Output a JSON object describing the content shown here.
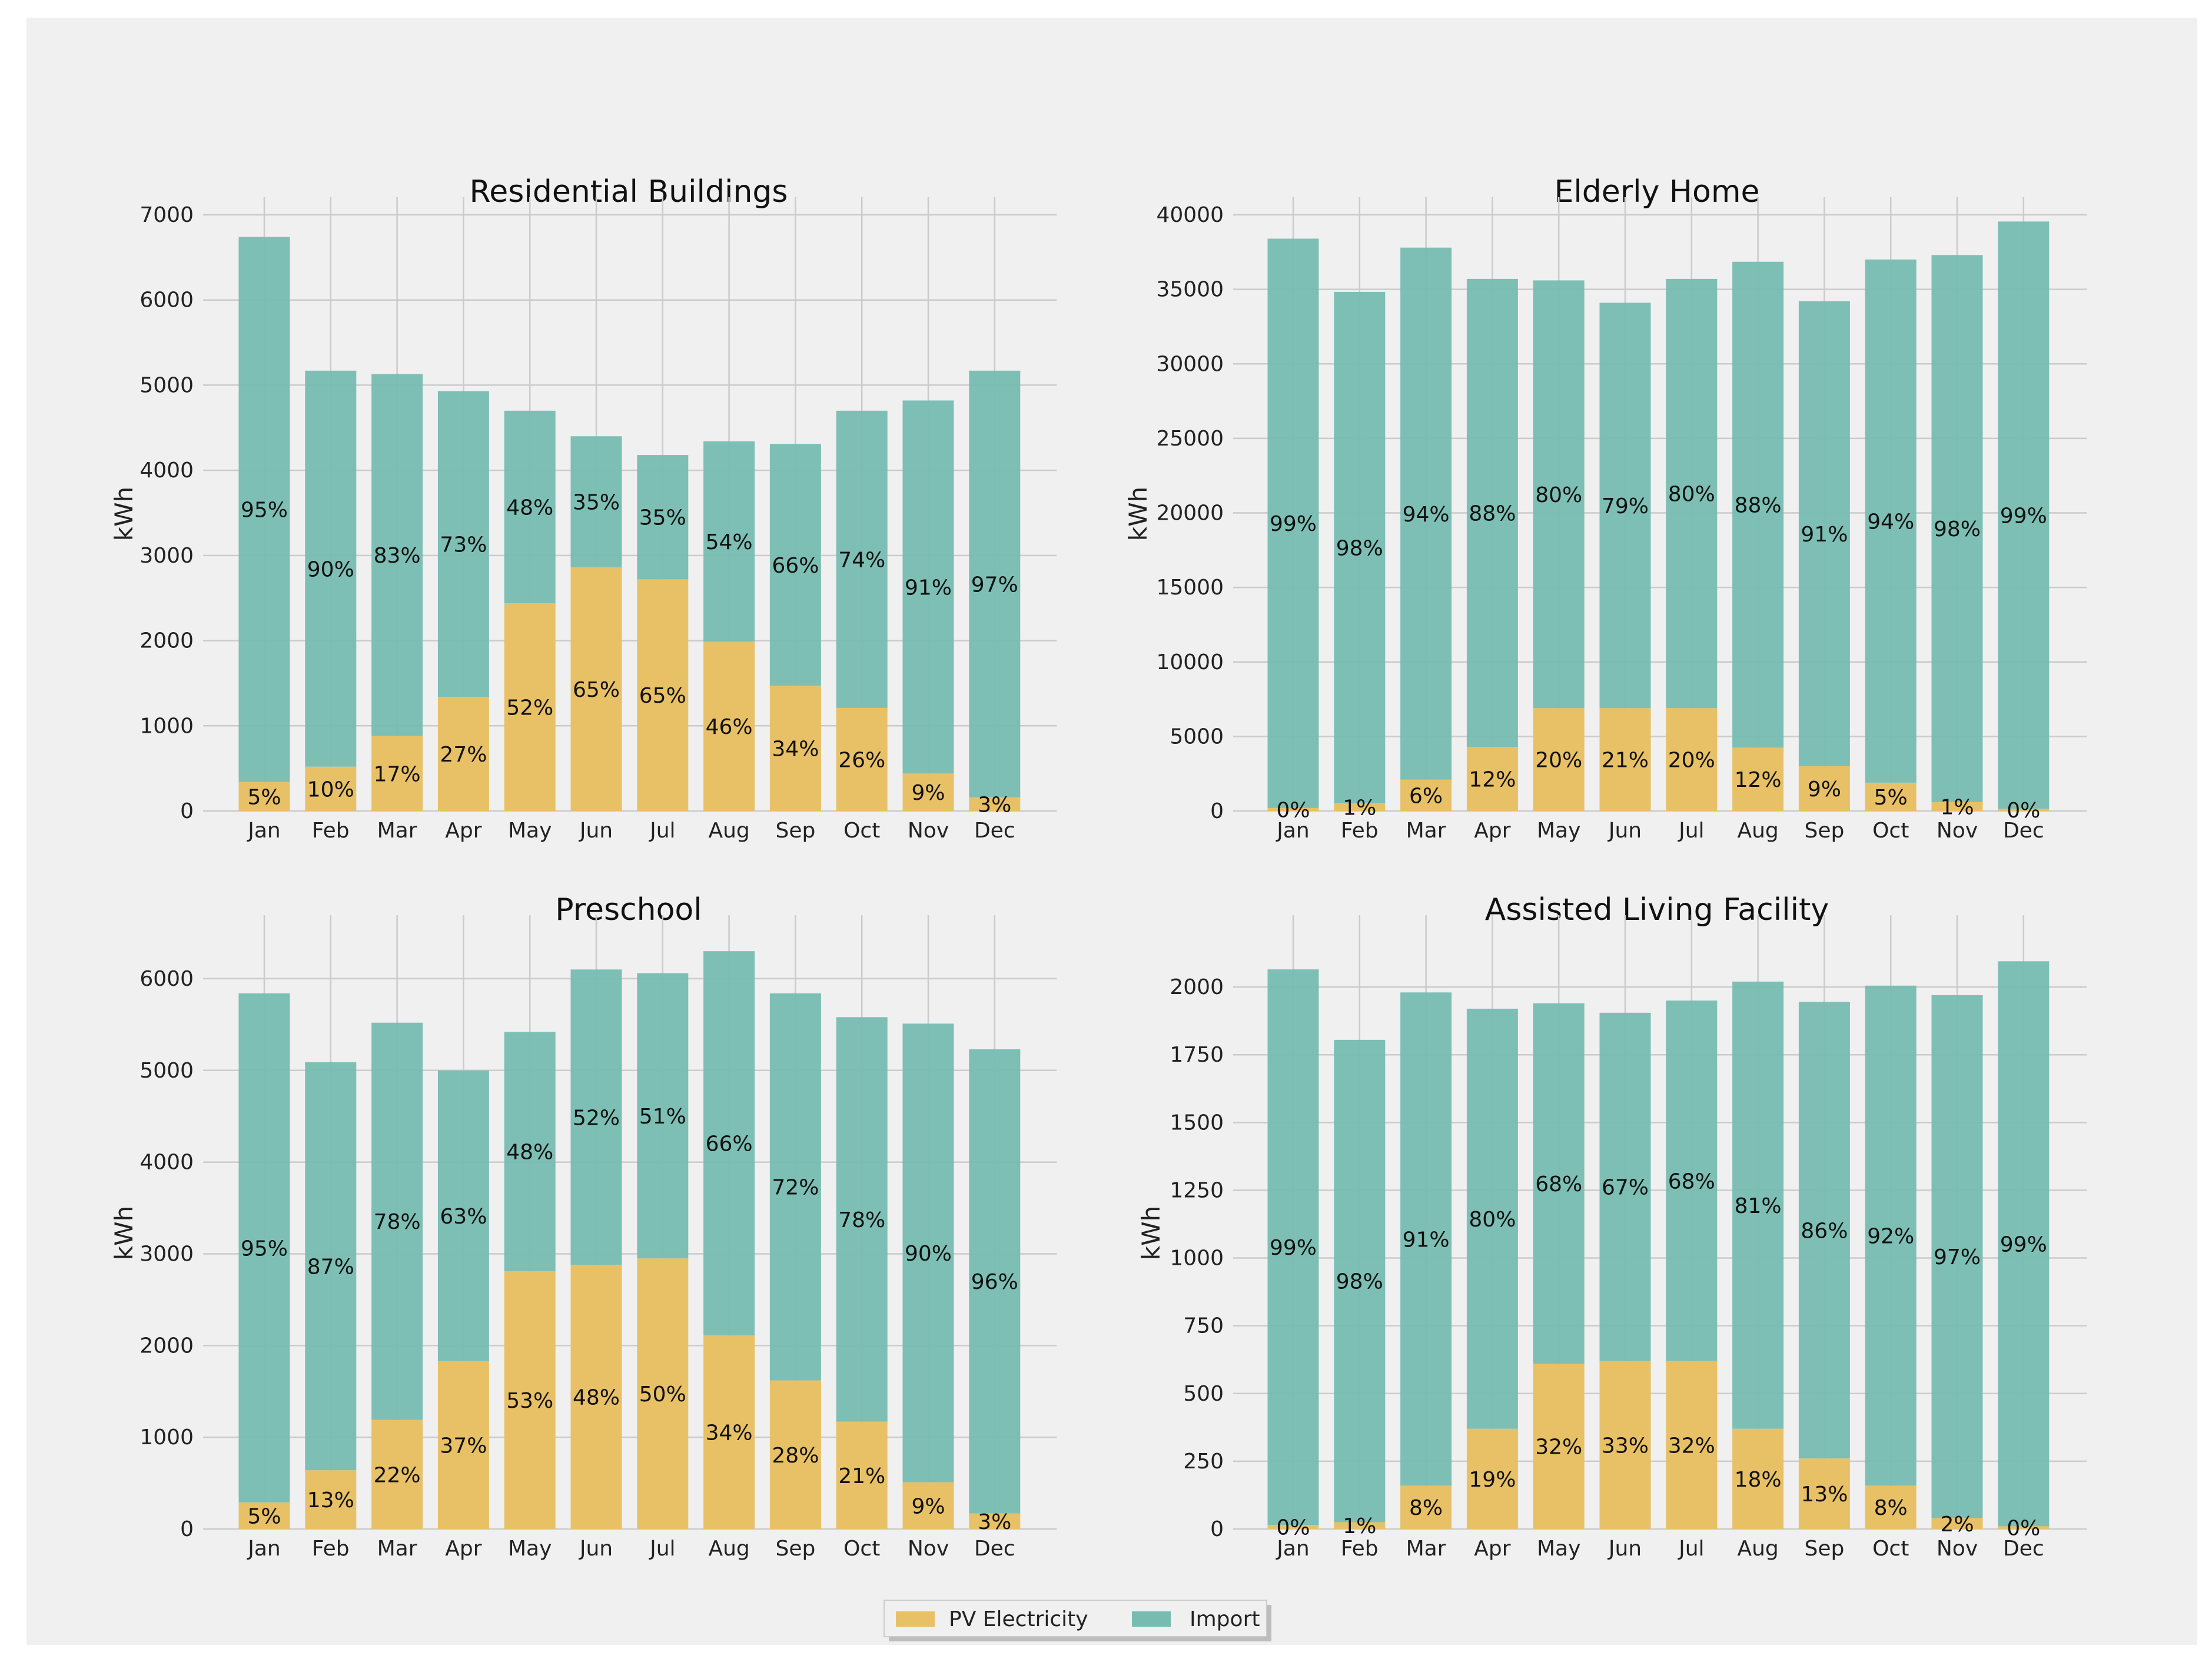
{
  "colors": {
    "figure_background": "#f0f0f0",
    "pv": "#e8c167",
    "import": "#77bcb1",
    "grid": "#cbcbcb",
    "text": "#222222"
  },
  "legend": {
    "items": [
      {
        "label": "PV Electricity",
        "color": "#e8c167"
      },
      {
        "label": "Import",
        "color": "#77bcb1"
      }
    ],
    "placement": "bottom-center"
  },
  "chart_data": [
    {
      "type": "bar",
      "stacked": true,
      "title": "Residential Buildings",
      "ylabel": "kWh",
      "xlabel": "",
      "grid": true,
      "ylim": [
        0,
        7000
      ],
      "yticks": [
        0,
        1000,
        2000,
        3000,
        4000,
        5000,
        6000,
        7000
      ],
      "yticklabels": [
        "0",
        "1000",
        "2000",
        "3000",
        "4000",
        "5000",
        "6000",
        "7000"
      ],
      "categories": [
        "Jan",
        "Feb",
        "Mar",
        "Apr",
        "May",
        "Jun",
        "Jul",
        "Aug",
        "Sep",
        "Oct",
        "Nov",
        "Dec"
      ],
      "series": [
        {
          "name": "PV Electricity",
          "values": [
            340,
            520,
            880,
            1340,
            2440,
            2860,
            2720,
            1990,
            1470,
            1210,
            440,
            160
          ],
          "labels": [
            "5%",
            "10%",
            "17%",
            "27%",
            "52%",
            "65%",
            "65%",
            "46%",
            "34%",
            "26%",
            "9%",
            "3%"
          ]
        },
        {
          "name": "Import",
          "values": [
            6400,
            4650,
            4250,
            3590,
            2260,
            1540,
            1460,
            2350,
            2840,
            3490,
            4380,
            5010
          ],
          "labels": [
            "95%",
            "90%",
            "83%",
            "73%",
            "48%",
            "35%",
            "35%",
            "54%",
            "66%",
            "74%",
            "91%",
            "97%"
          ]
        }
      ]
    },
    {
      "type": "bar",
      "stacked": true,
      "title": "Elderly Home",
      "ylabel": "kWh",
      "xlabel": "",
      "grid": true,
      "ylim": [
        0,
        40000
      ],
      "yticks": [
        0,
        5000,
        10000,
        15000,
        20000,
        25000,
        30000,
        35000,
        40000
      ],
      "yticklabels": [
        "0",
        "5000",
        "10000",
        "15000",
        "20000",
        "25000",
        "30000",
        "35000",
        "40000"
      ],
      "categories": [
        "Jan",
        "Feb",
        "Mar",
        "Apr",
        "May",
        "Jun",
        "Jul",
        "Aug",
        "Sep",
        "Oct",
        "Nov",
        "Dec"
      ],
      "series": [
        {
          "name": "PV Electricity",
          "values": [
            200,
            530,
            2100,
            4300,
            6900,
            6900,
            6900,
            4250,
            3000,
            1900,
            600,
            150
          ],
          "labels": [
            "0%",
            "1%",
            "6%",
            "12%",
            "20%",
            "21%",
            "20%",
            "12%",
            "9%",
            "5%",
            "1%",
            "0%"
          ]
        },
        {
          "name": "Import",
          "values": [
            38200,
            34300,
            35700,
            31400,
            28700,
            27200,
            28800,
            32600,
            31200,
            35100,
            36700,
            39400
          ],
          "labels": [
            "99%",
            "98%",
            "94%",
            "88%",
            "80%",
            "79%",
            "80%",
            "88%",
            "91%",
            "94%",
            "98%",
            "99%"
          ]
        }
      ]
    },
    {
      "type": "bar",
      "stacked": true,
      "title": "Preschool",
      "ylabel": "kWh",
      "xlabel": "",
      "grid": true,
      "ylim": [
        0,
        6500
      ],
      "yticks": [
        0,
        1000,
        2000,
        3000,
        4000,
        5000,
        6000
      ],
      "yticklabels": [
        "0",
        "1000",
        "2000",
        "3000",
        "4000",
        "5000",
        "6000"
      ],
      "categories": [
        "Jan",
        "Feb",
        "Mar",
        "Apr",
        "May",
        "Jun",
        "Jul",
        "Aug",
        "Sep",
        "Oct",
        "Nov",
        "Dec"
      ],
      "series": [
        {
          "name": "PV Electricity",
          "values": [
            290,
            640,
            1190,
            1830,
            2810,
            2880,
            2950,
            2110,
            1620,
            1170,
            510,
            170
          ],
          "labels": [
            "5%",
            "13%",
            "22%",
            "37%",
            "53%",
            "48%",
            "50%",
            "34%",
            "28%",
            "21%",
            "9%",
            "3%"
          ]
        },
        {
          "name": "Import",
          "values": [
            5550,
            4450,
            4330,
            3170,
            2610,
            3220,
            3110,
            4190,
            4220,
            4410,
            5000,
            5060
          ],
          "labels": [
            "95%",
            "87%",
            "78%",
            "63%",
            "48%",
            "52%",
            "51%",
            "66%",
            "72%",
            "78%",
            "90%",
            "96%"
          ]
        }
      ]
    },
    {
      "type": "bar",
      "stacked": true,
      "title": "Assisted Living Facility",
      "ylabel": "kWh",
      "xlabel": "",
      "grid": true,
      "ylim": [
        0,
        2200
      ],
      "yticks": [
        0,
        250,
        500,
        750,
        1000,
        1250,
        1500,
        1750,
        2000
      ],
      "yticklabels": [
        "0",
        "250",
        "500",
        "750",
        "1000",
        "1250",
        "1500",
        "1750",
        "2000"
      ],
      "categories": [
        "Jan",
        "Feb",
        "Mar",
        "Apr",
        "May",
        "Jun",
        "Jul",
        "Aug",
        "Sep",
        "Oct",
        "Nov",
        "Dec"
      ],
      "series": [
        {
          "name": "PV Electricity",
          "values": [
            15,
            25,
            160,
            370,
            610,
            620,
            620,
            370,
            260,
            160,
            40,
            10
          ],
          "labels": [
            "0%",
            "1%",
            "8%",
            "19%",
            "32%",
            "33%",
            "32%",
            "18%",
            "13%",
            "8%",
            "2%",
            "0%"
          ]
        },
        {
          "name": "Import",
          "values": [
            2050,
            1780,
            1820,
            1550,
            1330,
            1285,
            1330,
            1650,
            1685,
            1845,
            1930,
            2085
          ],
          "labels": [
            "99%",
            "98%",
            "91%",
            "80%",
            "68%",
            "67%",
            "68%",
            "81%",
            "86%",
            "92%",
            "97%",
            "99%"
          ]
        }
      ]
    }
  ]
}
